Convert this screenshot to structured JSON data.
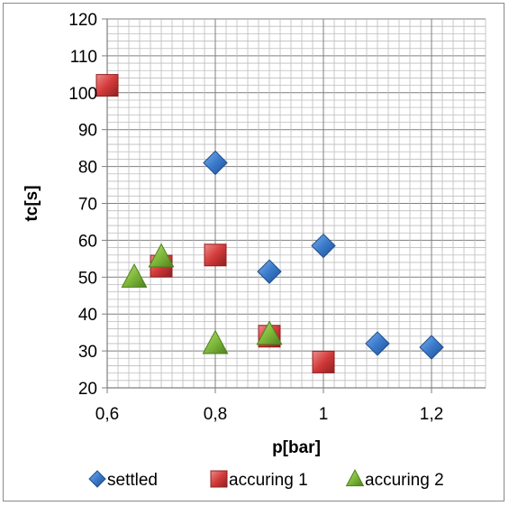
{
  "chart_data": {
    "type": "scatter",
    "title": "",
    "xlabel": "p[bar]",
    "ylabel": "tc[s]",
    "xlim": [
      0.6,
      1.3
    ],
    "ylim": [
      20,
      120
    ],
    "x_ticks": [
      0.6,
      0.8,
      1.0,
      1.2
    ],
    "x_tick_labels": [
      "0,6",
      "0,8",
      "1",
      "1,2"
    ],
    "y_ticks": [
      20,
      30,
      40,
      50,
      60,
      70,
      80,
      90,
      100,
      110,
      120
    ],
    "y_tick_labels": [
      "20",
      "30",
      "40",
      "50",
      "60",
      "70",
      "80",
      "90",
      "100",
      "110",
      "120"
    ],
    "grid": "horizontal-major-and-minor, vertical-major-and-minor",
    "legend_position": "bottom",
    "series": [
      {
        "name": "settled",
        "marker": "diamond",
        "color": "#2f6fbf",
        "points": [
          {
            "x": 0.8,
            "y": 81
          },
          {
            "x": 0.9,
            "y": 51.5
          },
          {
            "x": 1.0,
            "y": 58.5
          },
          {
            "x": 1.1,
            "y": 32
          },
          {
            "x": 1.2,
            "y": 31
          }
        ]
      },
      {
        "name": "accuring 1",
        "marker": "square",
        "color": "#d23a3a",
        "points": [
          {
            "x": 0.6,
            "y": 102
          },
          {
            "x": 0.7,
            "y": 53
          },
          {
            "x": 0.8,
            "y": 56
          },
          {
            "x": 0.9,
            "y": 34
          },
          {
            "x": 1.0,
            "y": 27
          }
        ]
      },
      {
        "name": "accuring 2",
        "marker": "triangle",
        "color": "#7fba3a",
        "points": [
          {
            "x": 0.65,
            "y": 50
          },
          {
            "x": 0.7,
            "y": 55.5
          },
          {
            "x": 0.8,
            "y": 32
          },
          {
            "x": 0.9,
            "y": 34.5
          }
        ]
      }
    ]
  }
}
